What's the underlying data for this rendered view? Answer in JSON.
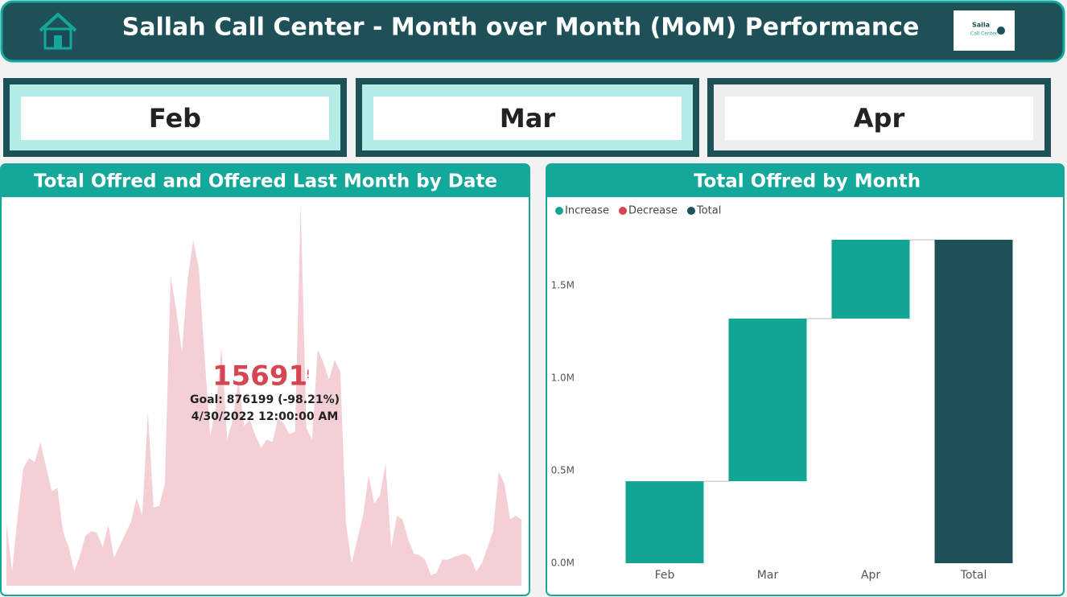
{
  "header": {
    "title": "Sallah Call Center - Month over Month (MoM) Performance",
    "logo": [
      "Salla",
      "Call Center"
    ]
  },
  "slicers": [
    "Feb",
    "Mar",
    "Apr"
  ],
  "chart_data": [
    {
      "type": "area",
      "title": "Total Offred and Offered Last Month by Date",
      "color": "#f4d0d6",
      "values": [
        14700,
        3400,
        16600,
        28000,
        30200,
        29300,
        34000,
        28300,
        22300,
        23200,
        12900,
        9100,
        3400,
        7200,
        11900,
        12900,
        12500,
        9100,
        14400,
        6600,
        9500,
        12300,
        15100,
        20800,
        16600,
        41200,
        18500,
        18900,
        24200,
        73300,
        65400,
        55400,
        72400,
        81800,
        75200,
        54400,
        35500,
        42100,
        56300,
        34600,
        39300,
        48800,
        37800,
        39300,
        35500,
        32700,
        34600,
        34000,
        39700,
        38400,
        35900,
        36500,
        90300,
        37400,
        34600,
        55900,
        52900,
        48800,
        53500,
        50600,
        14700,
        5300,
        11000,
        16600,
        26100,
        19500,
        21400,
        28900,
        9100,
        16600,
        15700,
        11000,
        7600,
        7200,
        6200,
        2500,
        3000,
        6200,
        6200,
        6800,
        7200,
        7600,
        6800,
        3400,
        5300,
        9100,
        12900,
        27000,
        24200,
        15700,
        16600,
        15691
      ],
      "ylim": [
        0,
        92000
      ],
      "kpi": {
        "value": 15691,
        "flag": "!",
        "goal": "Goal: 876199 (-98.21%)",
        "date": "4/30/2022 12:00:00 AM"
      }
    },
    {
      "type": "waterfall",
      "title": "Total Offred by Month",
      "categories": [
        "Feb",
        "Mar",
        "Apr",
        "Total"
      ],
      "values": [
        443000,
        879000,
        426000,
        1748000
      ],
      "measure": [
        "increase",
        "increase",
        "increase",
        "total"
      ],
      "legend": [
        {
          "name": "Increase",
          "color": "#12a596"
        },
        {
          "name": "Decrease",
          "color": "#d64550"
        },
        {
          "name": "Total",
          "color": "#1d5157"
        }
      ],
      "ylim": [
        0,
        1800000
      ],
      "yticks": [
        {
          "value": 0,
          "label": "0.0M"
        },
        {
          "value": 500000,
          "label": "0.5M"
        },
        {
          "value": 1000000,
          "label": "1.0M"
        },
        {
          "value": 1500000,
          "label": "1.5M"
        }
      ]
    }
  ]
}
